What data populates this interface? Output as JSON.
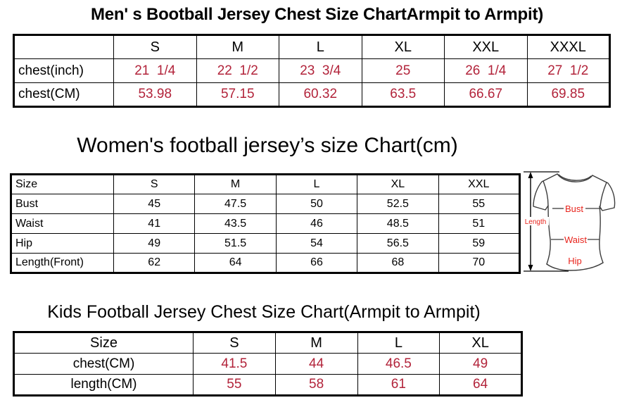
{
  "colors": {
    "table_value_red": "#b2233a",
    "diagram_label_red": "#e8241c",
    "text_black": "#000000",
    "shirt_outline_gray": "#3c3c3c"
  },
  "men_table": {
    "title": "Men' s Bootball Jersey Chest Size ChartArmpit to Armpit)",
    "headers": [
      "",
      "S",
      "M",
      "L",
      "XL",
      "XXL",
      "XXXL"
    ],
    "rows": [
      {
        "label": "chest(inch)",
        "values": [
          "21  1/4",
          "22  1/2",
          "23  3/4",
          "25",
          "26  1/4",
          "27  1/2"
        ]
      },
      {
        "label": "chest(CM)",
        "values": [
          "53.98",
          "57.15",
          "60.32",
          "63.5",
          "66.67",
          "69.85"
        ]
      }
    ]
  },
  "women_table": {
    "title": "Women's football jersey’s size Chart(cm)",
    "headers": [
      "Size",
      "S",
      "M",
      "L",
      "XL",
      "XXL"
    ],
    "rows": [
      {
        "label": "Bust",
        "values": [
          "45",
          "47.5",
          "50",
          "52.5",
          "55"
        ]
      },
      {
        "label": "Waist",
        "values": [
          "41",
          "43.5",
          "46",
          "48.5",
          "51"
        ]
      },
      {
        "label": "Hip",
        "values": [
          "49",
          "51.5",
          "54",
          "56.5",
          "59"
        ]
      },
      {
        "label": "Length(Front)",
        "values": [
          "62",
          "64",
          "66",
          "68",
          "70"
        ]
      }
    ]
  },
  "kids_table": {
    "title": "Kids Football Jersey Chest Size Chart(Armpit to Armpit)",
    "headers": [
      "Size",
      "S",
      "M",
      "L",
      "XL"
    ],
    "rows": [
      {
        "label": "chest(CM)",
        "values": [
          "41.5",
          "44",
          "46.5",
          "49"
        ]
      },
      {
        "label": "length(CM)",
        "values": [
          "55",
          "58",
          "61",
          "64"
        ]
      }
    ]
  },
  "diagram": {
    "length_label": "Length",
    "bust_label": "Bust",
    "waist_label": "Waist",
    "hip_label": "Hip"
  }
}
